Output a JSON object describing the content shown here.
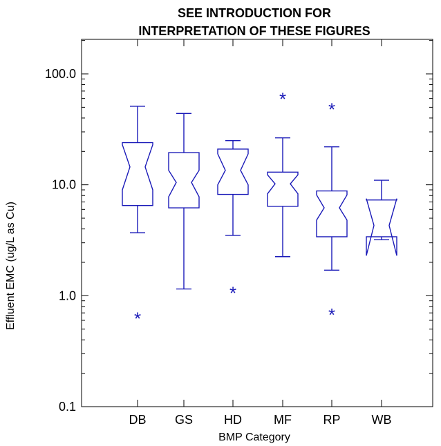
{
  "chart_data": {
    "type": "box",
    "title": [
      "SEE INTRODUCTION FOR",
      "INTERPRETATION OF THESE FIGURES"
    ],
    "xlabel": "BMP Category",
    "ylabel": "Effluent EMC  (ug/L as Cu)",
    "yscale": "log",
    "ylim": [
      0.1,
      200
    ],
    "yticks": [
      0.1,
      1.0,
      10.0,
      100.0
    ],
    "yticklabels": [
      "0.1",
      "1.0",
      "10.0",
      "100.0"
    ],
    "categories": [
      "DB",
      "GS",
      "HD",
      "MF",
      "RP",
      "WB"
    ],
    "color": "#1a1ab8",
    "outlier_marker": "*",
    "boxes": [
      {
        "category": "DB",
        "whisker_low": 3.7,
        "q1": 6.5,
        "notch_low": 9.0,
        "median": 14.5,
        "notch_high": 23.0,
        "q3": 24.0,
        "whisker_high": 51.0,
        "outliers": [
          0.65
        ]
      },
      {
        "category": "GS",
        "whisker_low": 1.15,
        "q1": 6.2,
        "notch_low": 7.8,
        "median": 10.5,
        "notch_high": 13.5,
        "q3": 19.5,
        "whisker_high": 44.0,
        "outliers": []
      },
      {
        "category": "HD",
        "whisker_low": 3.5,
        "q1": 8.2,
        "notch_low": 10.0,
        "median": 13.5,
        "notch_high": 19.0,
        "q3": 21.0,
        "whisker_high": 25.0,
        "outliers": [
          1.1
        ]
      },
      {
        "category": "MF",
        "whisker_low": 2.25,
        "q1": 6.4,
        "notch_low": 8.3,
        "median": 10.2,
        "notch_high": 12.3,
        "q3": 13.0,
        "whisker_high": 26.5,
        "outliers": [
          62.0
        ]
      },
      {
        "category": "RP",
        "whisker_low": 1.7,
        "q1": 3.4,
        "notch_low": 4.8,
        "median": 6.2,
        "notch_high": 8.1,
        "q3": 8.8,
        "whisker_high": 22.0,
        "outliers": [
          0.7,
          50.0
        ]
      },
      {
        "category": "WB",
        "whisker_low": 3.2,
        "q1": 3.4,
        "notch_low": 2.3,
        "median": 4.3,
        "notch_high": 7.5,
        "q3": 7.3,
        "whisker_high": 11.0,
        "outliers": []
      }
    ]
  }
}
